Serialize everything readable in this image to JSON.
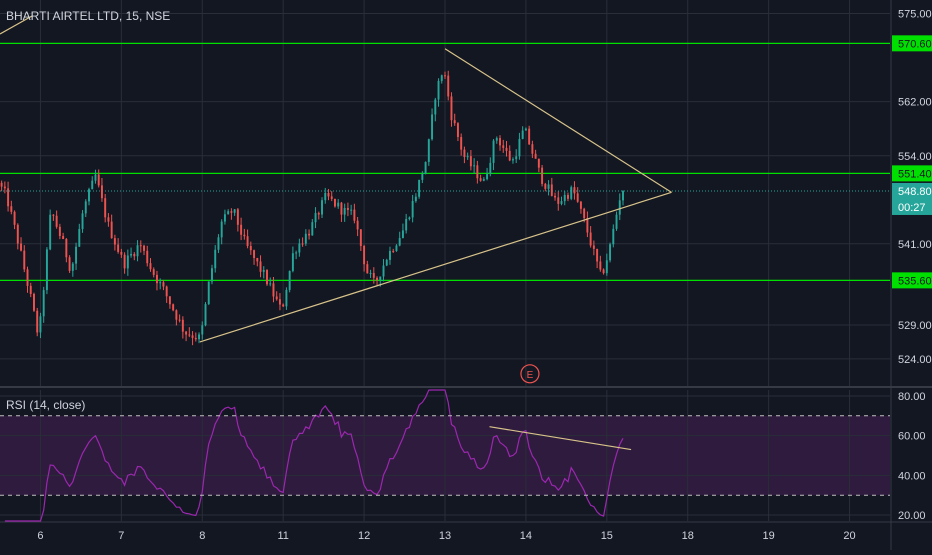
{
  "header": {
    "title": "BHARTI AIRTEL LTD, 15, NSE"
  },
  "rsi_panel": {
    "label": "RSI (14, close)"
  },
  "colors": {
    "background": "#131722",
    "grid": "#2a2e39",
    "up": "#26a69a",
    "down": "#ef5350",
    "level_line": "#00e000",
    "trendline": "#d8c38a",
    "rsi_line": "#9c27b0",
    "rsi_band": "#2e1b3d",
    "axis_text": "#d1d4dc",
    "price_tag": "#26a69a"
  },
  "chart_data": [
    {
      "type": "candlestick",
      "title": "BHARTI AIRTEL LTD, 15, NSE",
      "ylim": [
        520,
        577
      ],
      "y_ticks": [
        524.0,
        529.0,
        541.0,
        554.0,
        562.0,
        575.0
      ],
      "x_ticks": [
        "6",
        "7",
        "8",
        "11",
        "12",
        "13",
        "14",
        "15",
        "18",
        "19",
        "20"
      ],
      "x_tick_positions": [
        0.5,
        1.5,
        2.5,
        3.5,
        4.5,
        5.5,
        6.5,
        7.5,
        8.5,
        9.5,
        10.5
      ],
      "x_range": [
        0,
        11
      ],
      "anchors": [
        [
          0.0,
          550.0
        ],
        [
          0.1,
          548.0
        ],
        [
          0.25,
          541.0
        ],
        [
          0.4,
          533.0
        ],
        [
          0.5,
          527.0
        ],
        [
          0.65,
          546.0
        ],
        [
          0.8,
          541.0
        ],
        [
          0.9,
          537.0
        ],
        [
          1.05,
          546.0
        ],
        [
          1.2,
          551.0
        ],
        [
          1.35,
          544.0
        ],
        [
          1.55,
          538.0
        ],
        [
          1.75,
          541.0
        ],
        [
          1.9,
          537.0
        ],
        [
          2.05,
          534.0
        ],
        [
          2.3,
          528.0
        ],
        [
          2.5,
          527.0
        ],
        [
          2.6,
          535.0
        ],
        [
          2.75,
          544.0
        ],
        [
          2.9,
          546.0
        ],
        [
          3.05,
          541.0
        ],
        [
          3.3,
          536.0
        ],
        [
          3.5,
          531.0
        ],
        [
          3.65,
          540.0
        ],
        [
          3.85,
          543.0
        ],
        [
          4.05,
          548.0
        ],
        [
          4.25,
          546.0
        ],
        [
          4.4,
          545.0
        ],
        [
          4.55,
          537.0
        ],
        [
          4.65,
          535.0
        ],
        [
          4.8,
          539.0
        ],
        [
          5.0,
          543.0
        ],
        [
          5.15,
          548.0
        ],
        [
          5.3,
          554.0
        ],
        [
          5.4,
          563.0
        ],
        [
          5.5,
          567.0
        ],
        [
          5.6,
          560.0
        ],
        [
          5.75,
          554.0
        ],
        [
          6.0,
          550.0
        ],
        [
          6.15,
          557.0
        ],
        [
          6.35,
          553.0
        ],
        [
          6.5,
          558.0
        ],
        [
          6.7,
          551.0
        ],
        [
          6.9,
          547.0
        ],
        [
          7.1,
          549.0
        ],
        [
          7.25,
          544.0
        ],
        [
          7.4,
          538.0
        ],
        [
          7.45,
          536.0
        ],
        [
          7.55,
          540.0
        ],
        [
          7.7,
          549.0
        ]
      ],
      "candles_per_session": 25,
      "horizontal_levels": [
        570.6,
        551.4,
        535.6
      ],
      "last_price": 548.8,
      "last_price_countdown": "00:27",
      "trendlines": [
        {
          "from": [
            2.47,
            526.5
          ],
          "to": [
            8.3,
            548.6
          ]
        },
        {
          "from": [
            5.5,
            569.8
          ],
          "to": [
            8.3,
            548.6
          ]
        }
      ],
      "event_marker": {
        "x": 6.55,
        "y": 521.8,
        "label": "E"
      }
    },
    {
      "type": "line",
      "title": "RSI (14, close)",
      "ylim": [
        17,
        83
      ],
      "y_ticks": [
        20.0,
        40.0,
        60.0,
        80.0
      ],
      "bands": [
        30,
        70
      ],
      "bands_visible": [
        30,
        70
      ],
      "mid_line": 50,
      "trendline": {
        "from": [
          6.05,
          64.5
        ],
        "to": [
          7.8,
          53.0
        ]
      }
    }
  ]
}
